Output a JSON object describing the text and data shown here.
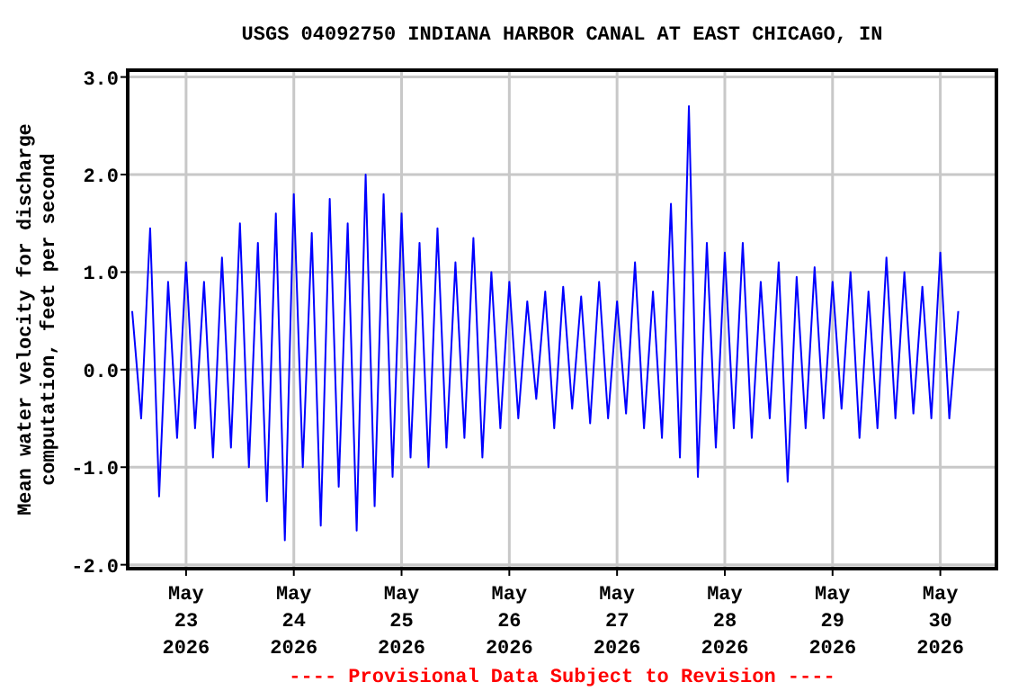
{
  "chart_data": {
    "type": "line",
    "title": "USGS 04092750 INDIANA HARBOR CANAL AT EAST CHICAGO, IN",
    "ylabel": "Mean water velocity for discharge computation, feet per second",
    "annotations": [
      "---- Provisional Data Subject to Revision ----"
    ],
    "x": [
      "2026-05-22T12:00",
      "2026-05-22T14:00",
      "2026-05-22T16:00",
      "2026-05-22T18:00",
      "2026-05-22T20:00",
      "2026-05-22T22:00",
      "2026-05-23T00:00",
      "2026-05-23T02:00",
      "2026-05-23T04:00",
      "2026-05-23T06:00",
      "2026-05-23T08:00",
      "2026-05-23T10:00",
      "2026-05-23T12:00",
      "2026-05-23T14:00",
      "2026-05-23T16:00",
      "2026-05-23T18:00",
      "2026-05-23T20:00",
      "2026-05-23T22:00",
      "2026-05-24T00:00",
      "2026-05-24T02:00",
      "2026-05-24T04:00",
      "2026-05-24T06:00",
      "2026-05-24T08:00",
      "2026-05-24T10:00",
      "2026-05-24T12:00",
      "2026-05-24T14:00",
      "2026-05-24T16:00",
      "2026-05-24T18:00",
      "2026-05-24T20:00",
      "2026-05-24T22:00",
      "2026-05-25T00:00",
      "2026-05-25T02:00",
      "2026-05-25T04:00",
      "2026-05-25T06:00",
      "2026-05-25T08:00",
      "2026-05-25T10:00",
      "2026-05-25T12:00",
      "2026-05-25T14:00",
      "2026-05-25T16:00",
      "2026-05-25T18:00",
      "2026-05-25T20:00",
      "2026-05-25T22:00",
      "2026-05-26T00:00",
      "2026-05-26T02:00",
      "2026-05-26T04:00",
      "2026-05-26T06:00",
      "2026-05-26T08:00",
      "2026-05-26T10:00",
      "2026-05-26T12:00",
      "2026-05-26T14:00",
      "2026-05-26T16:00",
      "2026-05-26T18:00",
      "2026-05-26T20:00",
      "2026-05-26T22:00",
      "2026-05-27T00:00",
      "2026-05-27T02:00",
      "2026-05-27T04:00",
      "2026-05-27T06:00",
      "2026-05-27T08:00",
      "2026-05-27T10:00",
      "2026-05-27T12:00",
      "2026-05-27T14:00",
      "2026-05-27T16:00",
      "2026-05-27T18:00",
      "2026-05-27T20:00",
      "2026-05-27T22:00",
      "2026-05-28T00:00",
      "2026-05-28T02:00",
      "2026-05-28T04:00",
      "2026-05-28T06:00",
      "2026-05-28T08:00",
      "2026-05-28T10:00",
      "2026-05-28T12:00",
      "2026-05-28T14:00",
      "2026-05-28T16:00",
      "2026-05-28T18:00",
      "2026-05-28T20:00",
      "2026-05-28T22:00",
      "2026-05-29T00:00",
      "2026-05-29T02:00",
      "2026-05-29T04:00",
      "2026-05-29T06:00",
      "2026-05-29T08:00",
      "2026-05-29T10:00",
      "2026-05-29T12:00",
      "2026-05-29T14:00",
      "2026-05-29T16:00",
      "2026-05-29T18:00",
      "2026-05-29T20:00",
      "2026-05-29T22:00",
      "2026-05-30T00:00",
      "2026-05-30T02:00",
      "2026-05-30T04:00"
    ],
    "series": [
      {
        "color": "#0000ff",
        "values": [
          0.6,
          -0.5,
          1.45,
          -1.3,
          0.9,
          -0.7,
          1.1,
          -0.6,
          0.9,
          -0.9,
          1.15,
          -0.8,
          1.5,
          -1.0,
          1.3,
          -1.35,
          1.6,
          -1.75,
          1.8,
          -1.0,
          1.4,
          -1.6,
          1.75,
          -1.2,
          1.5,
          -1.65,
          2.0,
          -1.4,
          1.8,
          -1.1,
          1.6,
          -0.9,
          1.3,
          -1.0,
          1.45,
          -0.8,
          1.1,
          -0.7,
          1.35,
          -0.9,
          1.0,
          -0.6,
          0.9,
          -0.5,
          0.7,
          -0.3,
          0.8,
          -0.6,
          0.85,
          -0.4,
          0.75,
          -0.55,
          0.9,
          -0.5,
          0.7,
          -0.45,
          1.1,
          -0.6,
          0.8,
          -0.7,
          1.7,
          -0.9,
          2.7,
          -1.1,
          1.3,
          -0.8,
          1.2,
          -0.6,
          1.3,
          -0.7,
          0.9,
          -0.5,
          1.1,
          -1.15,
          0.95,
          -0.6,
          1.05,
          -0.5,
          0.9,
          -0.4,
          1.0,
          -0.7,
          0.8,
          -0.6,
          1.15,
          -0.5,
          1.0,
          -0.45,
          0.85,
          -0.5,
          1.2,
          -0.5,
          0.6
        ]
      }
    ],
    "xlim": [
      "2026-05-22T11:00",
      "2026-05-30T12:30"
    ],
    "xticks": [
      {
        "value": "2026-05-23",
        "label": "May 23 2026"
      },
      {
        "value": "2026-05-24",
        "label": "May 24 2026"
      },
      {
        "value": "2026-05-25",
        "label": "May 25 2026"
      },
      {
        "value": "2026-05-26",
        "label": "May 26 2026"
      },
      {
        "value": "2026-05-27",
        "label": "May 27 2026"
      },
      {
        "value": "2026-05-28",
        "label": "May 28 2026"
      },
      {
        "value": "2026-05-29",
        "label": "May 29 2026"
      },
      {
        "value": "2026-05-30",
        "label": "May 30 2026"
      }
    ],
    "ylim": [
      -2.04,
      3.07
    ],
    "yticks": [
      {
        "value": -2,
        "label": "-2.0"
      },
      {
        "value": -1,
        "label": "-1.0"
      },
      {
        "value": 0,
        "label": "0.0"
      },
      {
        "value": 1,
        "label": "1.0"
      },
      {
        "value": 2,
        "label": "2.0"
      },
      {
        "value": 3,
        "label": "3.0"
      }
    ],
    "grid": true,
    "marker": "none",
    "line_style": "solid"
  }
}
